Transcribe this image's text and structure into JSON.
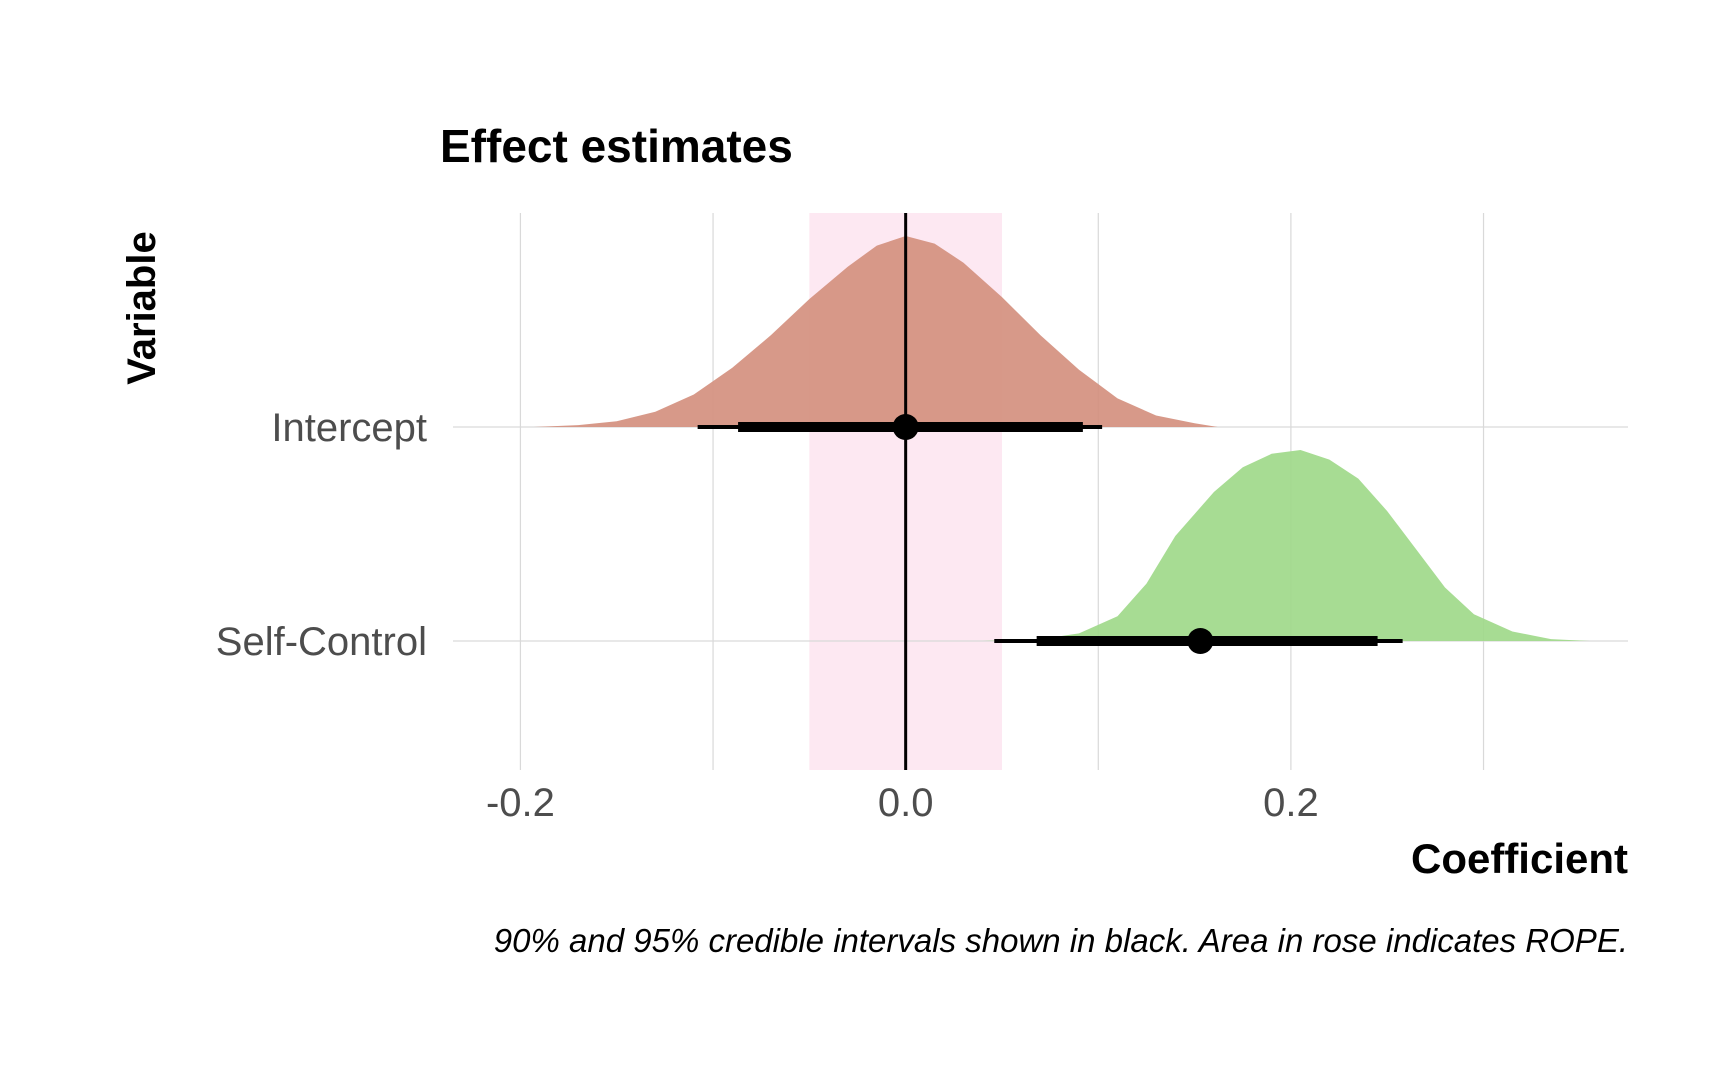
{
  "chart_data": {
    "type": "area",
    "title": "Effect estimates",
    "xlabel": "Coefficient",
    "ylabel": "Variable",
    "caption": "90% and 95% credible intervals shown in black. Area in rose indicates ROPE.",
    "x_ticks": [
      -0.2,
      0.0,
      0.2
    ],
    "x_tick_labels": [
      "-0.2",
      "0.0",
      "0.2"
    ],
    "xlim": [
      -0.235,
      0.375
    ],
    "categories": [
      "Intercept",
      "Self-Control"
    ],
    "rope": {
      "low": -0.05,
      "high": 0.05,
      "color": "#fde8f2"
    },
    "zero_line": 0.0,
    "grid": true,
    "series": [
      {
        "name": "Intercept",
        "color": "#d4907f",
        "density": [
          [
            -0.193,
            0.0
          ],
          [
            -0.17,
            0.01
          ],
          [
            -0.15,
            0.03
          ],
          [
            -0.13,
            0.08
          ],
          [
            -0.11,
            0.17
          ],
          [
            -0.09,
            0.31
          ],
          [
            -0.07,
            0.48
          ],
          [
            -0.05,
            0.67
          ],
          [
            -0.03,
            0.84
          ],
          [
            -0.015,
            0.95
          ],
          [
            0.0,
            1.0
          ],
          [
            0.015,
            0.96
          ],
          [
            0.03,
            0.86
          ],
          [
            0.05,
            0.68
          ],
          [
            0.07,
            0.48
          ],
          [
            0.09,
            0.3
          ],
          [
            0.11,
            0.15
          ],
          [
            0.13,
            0.06
          ],
          [
            0.15,
            0.02
          ],
          [
            0.162,
            0.0
          ]
        ],
        "median": 0.0,
        "ci90": [
          -0.087,
          0.092
        ],
        "ci95": [
          -0.108,
          0.102
        ]
      },
      {
        "name": "Self-Control",
        "color": "#9fd98a",
        "density": [
          [
            0.04,
            0.0
          ],
          [
            0.07,
            0.01
          ],
          [
            0.09,
            0.04
          ],
          [
            0.11,
            0.13
          ],
          [
            0.125,
            0.3
          ],
          [
            0.14,
            0.55
          ],
          [
            0.16,
            0.78
          ],
          [
            0.175,
            0.91
          ],
          [
            0.19,
            0.98
          ],
          [
            0.205,
            1.0
          ],
          [
            0.22,
            0.95
          ],
          [
            0.235,
            0.85
          ],
          [
            0.25,
            0.68
          ],
          [
            0.265,
            0.48
          ],
          [
            0.28,
            0.28
          ],
          [
            0.295,
            0.14
          ],
          [
            0.315,
            0.05
          ],
          [
            0.335,
            0.01
          ],
          [
            0.355,
            0.0
          ]
        ],
        "median": 0.153,
        "ci90": [
          0.068,
          0.245
        ],
        "ci95": [
          0.046,
          0.258
        ]
      }
    ]
  }
}
